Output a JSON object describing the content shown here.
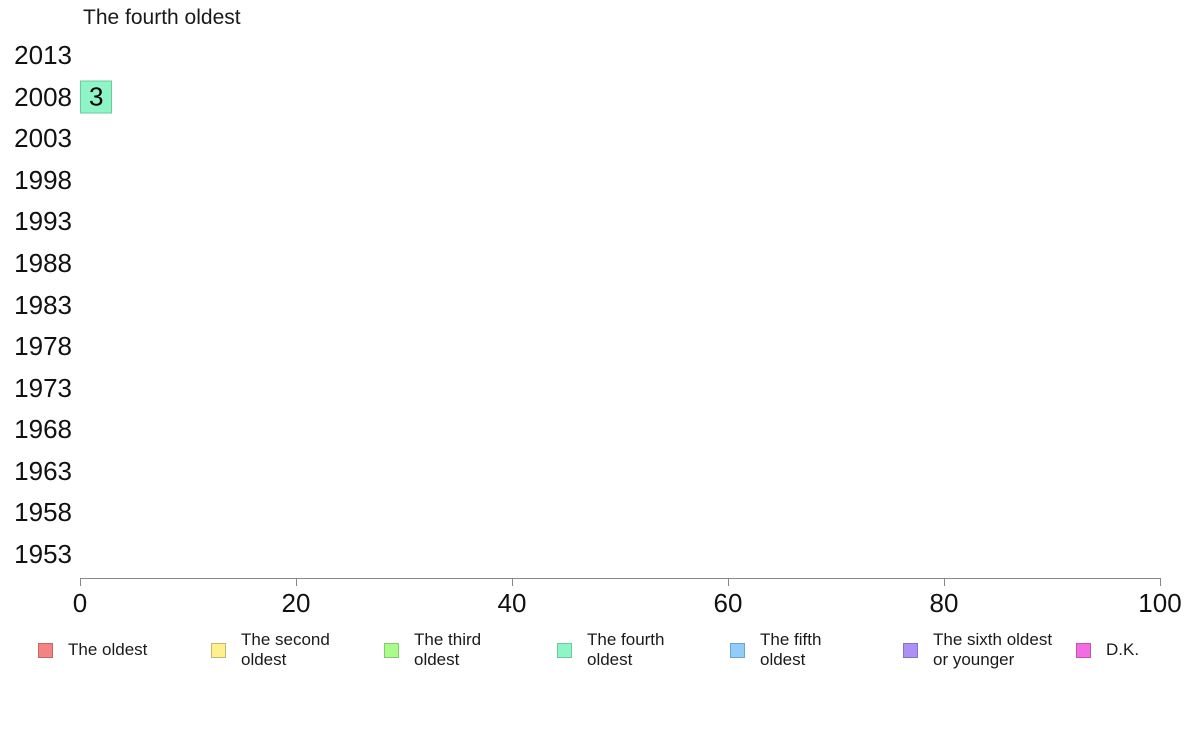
{
  "page": {
    "background": "#ffffff"
  },
  "chart_data": {
    "type": "bar",
    "orientation": "horizontal",
    "title": "The fourth oldest",
    "categories": [
      "2013",
      "2008",
      "2003",
      "1998",
      "1993",
      "1988",
      "1983",
      "1978",
      "1973",
      "1968",
      "1963",
      "1958",
      "1953"
    ],
    "values": [
      null,
      3,
      null,
      null,
      null,
      null,
      null,
      null,
      null,
      null,
      null,
      null,
      null
    ],
    "value_labels": [
      null,
      "3",
      null,
      null,
      null,
      null,
      null,
      null,
      null,
      null,
      null,
      null,
      null
    ],
    "xlabel": "",
    "ylabel": "",
    "xlim": [
      0,
      100
    ],
    "x_ticks": [
      0,
      20,
      40,
      60,
      80,
      100
    ],
    "grid": false,
    "bar_fill": "#8EF5C7",
    "bar_border": "#6FC8A1",
    "value_label_color": "#000000",
    "axis_color": "#888888",
    "legend_position": "bottom",
    "legend": [
      {
        "label": "The oldest",
        "fill": "#F48484",
        "border": "#BE6868"
      },
      {
        "label": "The second\noldest",
        "fill": "#FFF08F",
        "border": "#C2B575"
      },
      {
        "label": "The third\noldest",
        "fill": "#A9FB8A",
        "border": "#83CB6B"
      },
      {
        "label": "The fourth\noldest",
        "fill": "#8EF5C7",
        "border": "#6FC8A1"
      },
      {
        "label": "The fifth\noldest",
        "fill": "#90CDFB",
        "border": "#70A3CC"
      },
      {
        "label": "The sixth oldest\nor younger",
        "fill": "#AC90F5",
        "border": "#8A70C9"
      },
      {
        "label": "D.K.",
        "fill": "#F26CE4",
        "border": "#C253B6"
      }
    ]
  }
}
